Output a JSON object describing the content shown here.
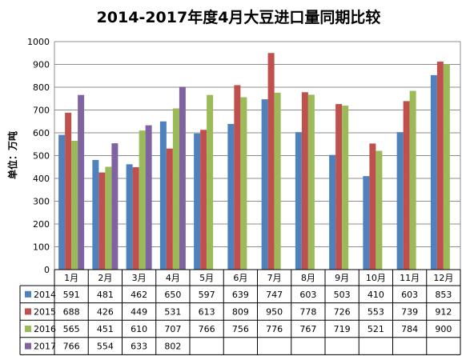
{
  "chart_data": {
    "type": "bar",
    "title": "2014-2017年度4月大豆进口量同期比较",
    "ylabel": "单位：万吨",
    "xlabel": "",
    "ylim": [
      0,
      1000
    ],
    "ytick_step": 100,
    "grid": true,
    "legend": "data-table",
    "categories": [
      "1月",
      "2月",
      "3月",
      "4月",
      "5月",
      "6月",
      "7月",
      "8月",
      "9月",
      "10月",
      "11月",
      "12月"
    ],
    "series": [
      {
        "name": "2014",
        "color": "#4F81BD",
        "values": [
          591,
          481,
          462,
          650,
          597,
          639,
          747,
          603,
          503,
          410,
          603,
          853
        ]
      },
      {
        "name": "2015",
        "color": "#C0504D",
        "values": [
          688,
          426,
          449,
          531,
          613,
          809,
          950,
          778,
          726,
          553,
          739,
          912
        ]
      },
      {
        "name": "2016",
        "color": "#9BBB59",
        "values": [
          565,
          451,
          610,
          707,
          766,
          756,
          776,
          767,
          719,
          521,
          784,
          900
        ]
      },
      {
        "name": "2017",
        "color": "#8064A2",
        "values": [
          766,
          554,
          633,
          802,
          null,
          null,
          null,
          null,
          null,
          null,
          null,
          null
        ]
      }
    ]
  }
}
